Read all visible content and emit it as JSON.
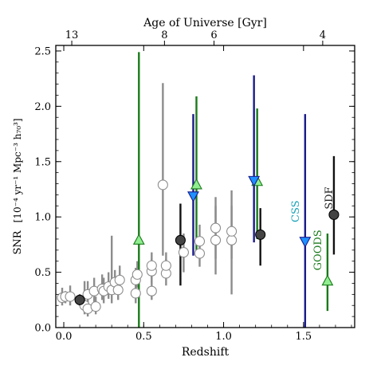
{
  "chart_data": {
    "type": "scatter",
    "xlabel": "Redshift",
    "ylabel_main": "SNR",
    "ylabel_units": "[10⁻⁴ yr⁻¹ Mpc⁻³ h₇₀³]",
    "top_axis_label": "Age of Universe [Gyr]",
    "xlim": [
      -0.05,
      1.82
    ],
    "ylim": [
      0,
      2.55
    ],
    "x_ticks": [
      0.0,
      0.5,
      1.0,
      1.5
    ],
    "x_tick_labels": [
      "0.0",
      "0.5",
      "1.0",
      "1.5"
    ],
    "y_ticks": [
      0.0,
      0.5,
      1.0,
      1.5,
      2.0,
      2.5
    ],
    "y_tick_labels": [
      "0.0",
      "0.5",
      "1.0",
      "1.5",
      "2.0",
      "2.5"
    ],
    "top_ticks": [
      {
        "label": "13",
        "z": 0.05
      },
      {
        "label": "8",
        "z": 0.63
      },
      {
        "label": "6",
        "z": 0.94
      },
      {
        "label": "4",
        "z": 1.62
      }
    ],
    "annotations": [
      {
        "text": "CSS",
        "x": 1.47,
        "y": 1.05,
        "color": "#17a2b8"
      },
      {
        "text": "GOODS",
        "x": 1.61,
        "y": 0.7,
        "color": "#1a7a1a"
      },
      {
        "text": "SDF",
        "x": 1.68,
        "y": 1.17,
        "color": "#222222"
      }
    ],
    "colors": {
      "gray": "#8c8c8c",
      "dark_marker": "#444444",
      "black_bar": "#111111",
      "green": "#1a7a1a",
      "green_marker": "#90ee90",
      "navy": "#1a1a8c",
      "cyan_marker": "#1e90ff"
    },
    "series": [
      {
        "marker": "open-circle",
        "points": [
          {
            "x": -0.01,
            "y": 0.27,
            "lo": 0.2,
            "hi": 0.36
          },
          {
            "x": 0.01,
            "y": 0.28,
            "lo": 0.22,
            "hi": 0.33
          },
          {
            "x": 0.04,
            "y": 0.28,
            "lo": 0.2,
            "hi": 0.38
          },
          {
            "x": 0.13,
            "y": 0.2,
            "lo": 0.12,
            "hi": 0.42
          },
          {
            "x": 0.15,
            "y": 0.17,
            "lo": 0.1,
            "hi": 0.25
          },
          {
            "x": 0.15,
            "y": 0.3,
            "lo": 0.2,
            "hi": 0.42
          },
          {
            "x": 0.19,
            "y": 0.33,
            "lo": 0.22,
            "hi": 0.45
          },
          {
            "x": 0.2,
            "y": 0.19,
            "lo": 0.12,
            "hi": 0.28
          },
          {
            "x": 0.24,
            "y": 0.35,
            "lo": 0.25,
            "hi": 0.48
          },
          {
            "x": 0.25,
            "y": 0.33,
            "lo": 0.22,
            "hi": 0.45
          },
          {
            "x": 0.28,
            "y": 0.37,
            "lo": 0.26,
            "hi": 0.5
          },
          {
            "x": 0.3,
            "y": 0.34,
            "lo": 0.22,
            "hi": 0.83
          },
          {
            "x": 0.32,
            "y": 0.41,
            "lo": 0.3,
            "hi": 0.52
          },
          {
            "x": 0.34,
            "y": 0.34,
            "lo": 0.25,
            "hi": 0.45
          },
          {
            "x": 0.35,
            "y": 0.43,
            "lo": 0.3,
            "hi": 0.56
          },
          {
            "x": 0.45,
            "y": 0.31,
            "lo": 0.22,
            "hi": 0.42
          },
          {
            "x": 0.45,
            "y": 0.43,
            "lo": 0.32,
            "hi": 0.54
          },
          {
            "x": 0.46,
            "y": 0.48,
            "lo": 0.36,
            "hi": 0.6
          },
          {
            "x": 0.55,
            "y": 0.33,
            "lo": 0.25,
            "hi": 0.48
          },
          {
            "x": 0.55,
            "y": 0.51,
            "lo": 0.4,
            "hi": 0.62
          },
          {
            "x": 0.55,
            "y": 0.56,
            "lo": 0.44,
            "hi": 0.68
          },
          {
            "x": 0.62,
            "y": 1.29,
            "lo": 0.65,
            "hi": 2.21
          },
          {
            "x": 0.64,
            "y": 0.49,
            "lo": 0.38,
            "hi": 0.62
          },
          {
            "x": 0.64,
            "y": 0.56,
            "lo": 0.45,
            "hi": 0.68
          },
          {
            "x": 0.75,
            "y": 0.68,
            "lo": 0.5,
            "hi": 0.85
          },
          {
            "x": 0.85,
            "y": 0.67,
            "lo": 0.55,
            "hi": 0.82
          },
          {
            "x": 0.85,
            "y": 0.78,
            "lo": 0.62,
            "hi": 0.93
          },
          {
            "x": 0.95,
            "y": 0.79,
            "lo": 0.48,
            "hi": 1.1
          },
          {
            "x": 0.95,
            "y": 0.9,
            "lo": 0.62,
            "hi": 1.18
          },
          {
            "x": 1.05,
            "y": 0.79,
            "lo": 0.3,
            "hi": 1.24
          },
          {
            "x": 1.05,
            "y": 0.87,
            "lo": 0.62,
            "hi": 1.1
          }
        ]
      },
      {
        "marker": "filled-circle",
        "points": [
          {
            "x": 0.1,
            "y": 0.25,
            "lo": 0.2,
            "hi": 0.3
          },
          {
            "x": 0.73,
            "y": 0.79,
            "lo": 0.38,
            "hi": 1.12
          },
          {
            "x": 1.23,
            "y": 0.84,
            "lo": 0.56,
            "hi": 1.08
          }
        ]
      },
      {
        "name": "SDF",
        "marker": "filled-circle",
        "points": [
          {
            "x": 1.69,
            "y": 1.02,
            "lo": 0.66,
            "hi": 1.55
          }
        ]
      },
      {
        "name": "GOODS",
        "marker": "triangle-up",
        "points": [
          {
            "x": 0.47,
            "y": 0.79,
            "lo": 0.0,
            "hi": 2.49
          },
          {
            "x": 0.83,
            "y": 1.29,
            "lo": 0.67,
            "hi": 2.09
          },
          {
            "x": 1.21,
            "y": 1.32,
            "lo": 0.8,
            "hi": 1.98
          },
          {
            "x": 1.65,
            "y": 0.42,
            "lo": 0.15,
            "hi": 0.85
          }
        ]
      },
      {
        "name": "CSS",
        "marker": "triangle-down",
        "points": [
          {
            "x": 0.81,
            "y": 1.19,
            "lo": 0.65,
            "hi": 1.93
          },
          {
            "x": 1.19,
            "y": 1.33,
            "lo": 0.77,
            "hi": 2.28
          },
          {
            "x": 1.51,
            "y": 0.78,
            "lo": 0.0,
            "hi": 1.93
          }
        ]
      }
    ]
  }
}
